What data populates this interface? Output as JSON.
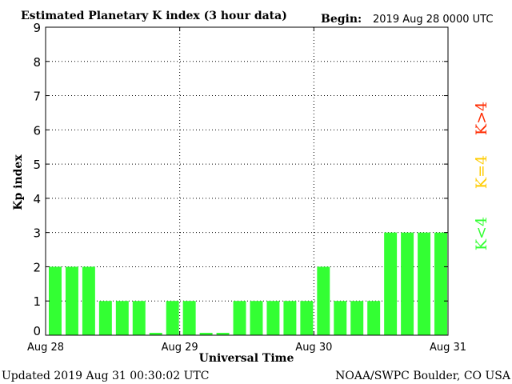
{
  "header": {
    "title": "Estimated Planetary K index (3 hour data)",
    "begin_label": "Begin:",
    "begin_value": "2019 Aug 28 0000 UTC"
  },
  "footer": {
    "updated": "Updated 2019 Aug 31 00:30:02 UTC",
    "source": "NOAA/SWPC Boulder, CO USA"
  },
  "legend": [
    {
      "label": "K>4",
      "color": "#ff2a00"
    },
    {
      "label": "K=4",
      "color": "#ffcc00"
    },
    {
      "label": "K<4",
      "color": "#33ff33"
    }
  ],
  "chart_data": {
    "type": "bar",
    "title": "Estimated Planetary K index (3 hour data)",
    "xlabel": "Universal Time",
    "ylabel": "Kp index",
    "ylim": [
      0,
      9
    ],
    "yticks": [
      0,
      1,
      2,
      3,
      4,
      5,
      6,
      7,
      8,
      9
    ],
    "xticks": [
      "Aug 28",
      "Aug 29",
      "Aug 30",
      "Aug 31"
    ],
    "interval_hours": 3,
    "bar_color": "#33ff33",
    "grid": true,
    "values": [
      2,
      2,
      2,
      1,
      1,
      1,
      0.07,
      1,
      1,
      0.07,
      0.07,
      1,
      1,
      1,
      1,
      1,
      2,
      1,
      1,
      1,
      3,
      3,
      3,
      3
    ]
  }
}
